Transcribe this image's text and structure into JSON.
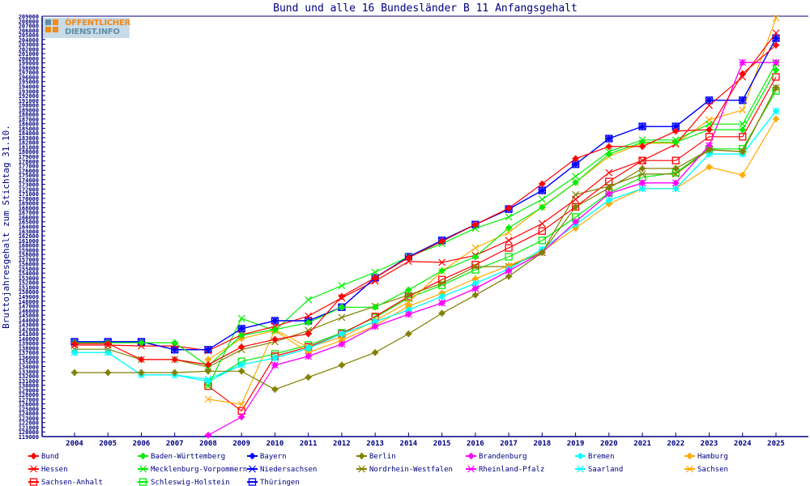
{
  "chart_data": {
    "type": "line",
    "title": "Bund und alle 16 Bundesländer B 11 Anfangsgehalt",
    "xlabel": "",
    "ylabel": "Bruttojahresgehalt zum Stichtag 31.10.",
    "ylim": [
      119000,
      209000
    ],
    "ytick_step": 1000,
    "grid": false,
    "legend_position": "bottom",
    "x": [
      2004,
      2005,
      2006,
      2007,
      2008,
      2009,
      2010,
      2011,
      2012,
      2013,
      2014,
      2015,
      2016,
      2017,
      2018,
      2019,
      2020,
      2021,
      2022,
      2023,
      2024,
      2025
    ],
    "series": [
      {
        "name": "Bund",
        "color": "#ff0000",
        "marker": "star",
        "values": [
          138900,
          138900,
          135500,
          135500,
          134400,
          138200,
          139800,
          141000,
          149000,
          153000,
          157300,
          160800,
          164400,
          167900,
          173100,
          178500,
          181100,
          181100,
          184400,
          184700,
          196700,
          202800
        ]
      },
      {
        "name": "Baden-Württemberg",
        "color": "#00ee00",
        "marker": "star",
        "values": [
          139100,
          139100,
          139100,
          139100,
          134100,
          140700,
          141900,
          143400,
          146700,
          146700,
          150400,
          154500,
          157500,
          163700,
          168100,
          173400,
          179500,
          182000,
          182000,
          184700,
          184700,
          197500
        ]
      },
      {
        "name": "Bayern",
        "color": "#0000ff",
        "marker": "star",
        "values": [
          139300,
          139300,
          139300,
          137600,
          137600,
          142100,
          143800,
          143800,
          146700,
          153000,
          157500,
          161000,
          164400,
          167700,
          171700,
          177300,
          182800,
          185400,
          185400,
          191000,
          191000,
          204300
        ]
      },
      {
        "name": "Berlin",
        "color": "#808000",
        "marker": "star",
        "values": [
          132700,
          132700,
          132700,
          132700,
          133000,
          133000,
          129100,
          131700,
          134300,
          137000,
          141000,
          145400,
          149300,
          153300,
          158400,
          168200,
          172200,
          176400,
          176400,
          180400,
          180000,
          193700
        ]
      },
      {
        "name": "Brandenburg",
        "color": "#ff00ff",
        "marker": "star",
        "values": [
          null,
          null,
          null,
          null,
          119300,
          123200,
          134300,
          136200,
          138800,
          142600,
          145200,
          147600,
          150700,
          154500,
          158400,
          165000,
          171000,
          173300,
          173300,
          181300,
          199100,
          199100
        ]
      },
      {
        "name": "Bremen",
        "color": "#00ffff",
        "marker": "star",
        "values": [
          137000,
          137000,
          132200,
          132200,
          130800,
          134400,
          135800,
          137900,
          141000,
          143600,
          146100,
          149000,
          151800,
          154900,
          159100,
          164400,
          169600,
          172100,
          172100,
          179500,
          179500,
          188700
        ]
      },
      {
        "name": "Hamburg",
        "color": "#ffaa00",
        "marker": "star",
        "values": [
          null,
          null,
          null,
          null,
          135500,
          140000,
          141700,
          137000,
          139600,
          142800,
          146900,
          149700,
          152800,
          155600,
          158700,
          163600,
          168800,
          172100,
          172100,
          176700,
          175000,
          187000
        ]
      },
      {
        "name": "Hessen",
        "color": "#ff0000",
        "marker": "x",
        "values": [
          138600,
          138600,
          138400,
          138400,
          137400,
          140800,
          142600,
          144800,
          148700,
          152300,
          156500,
          156300,
          157800,
          161000,
          164600,
          169800,
          175500,
          178100,
          181600,
          189900,
          196000,
          205400
        ]
      },
      {
        "name": "Mecklenburg-Vorpommern",
        "color": "#00ee00",
        "marker": "x",
        "values": [
          null,
          null,
          null,
          null,
          129800,
          144300,
          141700,
          148300,
          151300,
          154200,
          157500,
          160300,
          163600,
          166000,
          169800,
          174700,
          180000,
          182500,
          182500,
          185900,
          185900,
          198900
        ]
      },
      {
        "name": "Niedersachsen",
        "color": "#0000ff",
        "marker": "x",
        "values": [
          139300,
          139300,
          139300,
          137600,
          137600,
          142100,
          143800,
          143800,
          146700,
          153000,
          157500,
          161000,
          164400,
          167700,
          171700,
          177300,
          182800,
          185400,
          185400,
          191000,
          191000,
          204300
        ]
      },
      {
        "name": "Nordrhein-Westfalen",
        "color": "#808000",
        "marker": "x",
        "values": [
          137700,
          137700,
          135500,
          135500,
          133900,
          137600,
          139300,
          141700,
          144500,
          146900,
          149300,
          151800,
          155400,
          155400,
          158400,
          170800,
          172600,
          175200,
          175200,
          180400,
          180000,
          193700
        ]
      },
      {
        "name": "Rheinland-Pfalz",
        "color": "#ff00ff",
        "marker": "x",
        "values": [
          null,
          null,
          null,
          null,
          null,
          null,
          134300,
          136200,
          138800,
          142600,
          145200,
          147600,
          150700,
          154500,
          158400,
          165000,
          171000,
          173300,
          173300,
          181300,
          199100,
          199100
        ]
      },
      {
        "name": "Saarland",
        "color": "#00ffff",
        "marker": "x",
        "values": [
          137000,
          137000,
          132200,
          132200,
          131300,
          134400,
          135800,
          137900,
          141000,
          143600,
          146100,
          149000,
          151800,
          154900,
          159100,
          164400,
          169600,
          172100,
          172100,
          179500,
          179500,
          188700
        ]
      },
      {
        "name": "Sachsen",
        "color": "#ffaa00",
        "marker": "x",
        "values": [
          null,
          null,
          null,
          null,
          127000,
          125900,
          141900,
          138100,
          140300,
          143800,
          147800,
          154400,
          159400,
          162700,
          168200,
          173400,
          179000,
          181800,
          181800,
          186800,
          188900,
          208600
        ]
      },
      {
        "name": "Sachsen-Anhalt",
        "color": "#ff0000",
        "marker": "square",
        "values": [
          null,
          null,
          null,
          null,
          129800,
          124500,
          136200,
          138200,
          141000,
          144700,
          149000,
          152600,
          155800,
          159400,
          163000,
          168200,
          173600,
          178100,
          178100,
          183200,
          183200,
          196000
        ]
      },
      {
        "name": "Schleswig-Holstein",
        "color": "#00ee00",
        "marker": "square",
        "values": [
          null,
          null,
          null,
          null,
          130600,
          135100,
          136700,
          138600,
          141200,
          144500,
          148700,
          151400,
          154700,
          157500,
          161000,
          166000,
          171200,
          174500,
          175500,
          180600,
          180600,
          193000
        ]
      },
      {
        "name": "Thüringen",
        "color": "#0000ff",
        "marker": "square",
        "values": [
          139300,
          139300,
          139300,
          137600,
          137600,
          142100,
          143800,
          143800,
          146700,
          153000,
          157500,
          161000,
          164400,
          167700,
          171700,
          177300,
          182800,
          185400,
          185400,
          191000,
          191000,
          204300
        ]
      }
    ]
  },
  "logo": {
    "line1": "ÖFFENTLICHER",
    "line2": "DIENST.INFO"
  },
  "colors": {
    "axis": "#000080",
    "text": "#000080"
  }
}
